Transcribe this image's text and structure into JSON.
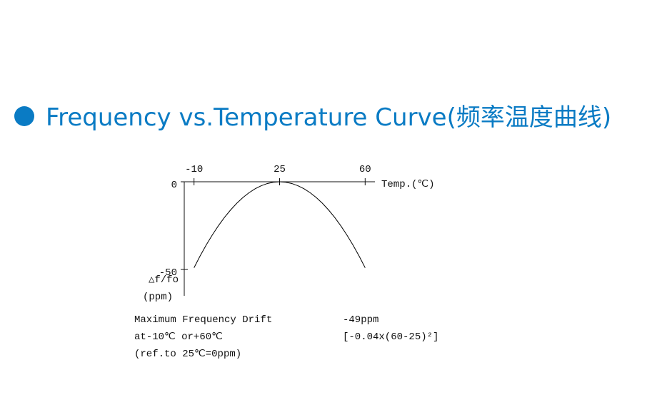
{
  "chart_data": {
    "type": "line",
    "title": "Frequency vs.Temperature Curve(频率温度曲线)",
    "x_label": "Temp.(℃)",
    "y_label": [
      "△f/fo",
      "(ppm)"
    ],
    "x": [
      -10,
      -7.5,
      -5,
      -2.5,
      0,
      2.5,
      5,
      7.5,
      10,
      12.5,
      15,
      17.5,
      20,
      22.5,
      25,
      27.5,
      30,
      32.5,
      35,
      37.5,
      40,
      42.5,
      45,
      47.5,
      50,
      52.5,
      55,
      57.5,
      60
    ],
    "values": [
      -49,
      -42.25,
      -36,
      -30.25,
      -25,
      -20.25,
      -16,
      -12.25,
      -9,
      -6.25,
      -4,
      -2.25,
      -1,
      -0.25,
      0,
      -0.25,
      -1,
      -2.25,
      -4,
      -6.25,
      -9,
      -12.25,
      -16,
      -20.25,
      -25,
      -30.25,
      -36,
      -42.25,
      -49
    ],
    "color": "#000000",
    "xlim": [
      -14,
      64
    ],
    "xticks": [
      -10,
      25,
      60
    ],
    "ylim": [
      -65,
      0
    ],
    "yticks": [
      0,
      -50
    ],
    "annotations": [
      "Maximum Frequency Drift",
      "-49ppm",
      "at-10℃ or+60℃",
      "[-0.04x(60-25)²]",
      "(ref.to 25℃=0ppm)"
    ]
  }
}
